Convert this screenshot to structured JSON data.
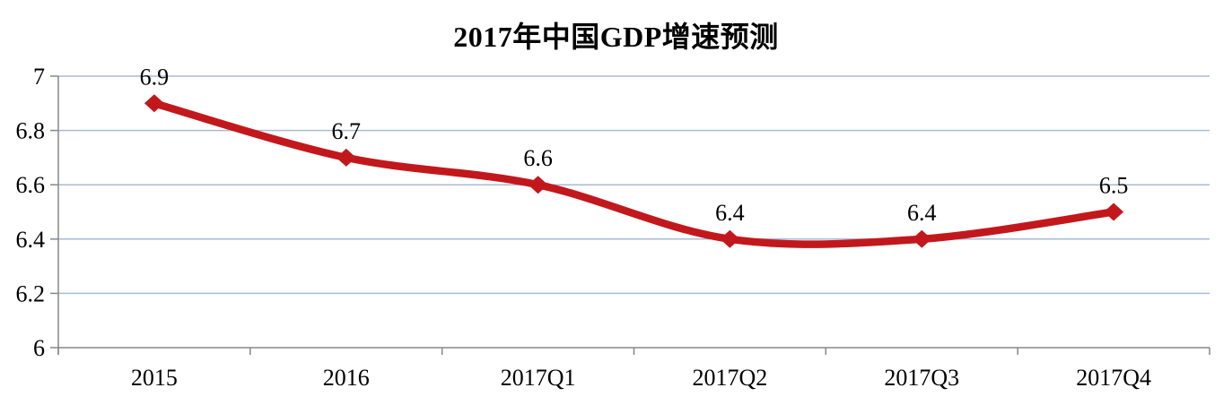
{
  "chart_data": {
    "type": "line",
    "title": "2017年中国GDP增速预测",
    "categories": [
      "2015",
      "2016",
      "2017Q1",
      "2017Q2",
      "2017Q3",
      "2017Q4"
    ],
    "values": [
      6.9,
      6.7,
      6.6,
      6.4,
      6.4,
      6.5
    ],
    "data_labels": [
      "6.9",
      "6.7",
      "6.6",
      "6.4",
      "6.4",
      "6.5"
    ],
    "xlabel": "",
    "ylabel": "",
    "ylim": [
      6,
      7
    ],
    "yticks": [
      7,
      6.8,
      6.6,
      6.4,
      6.2,
      6
    ],
    "ytick_labels": [
      "7",
      "6.8",
      "6.6",
      "6.4",
      "6.2",
      "6"
    ],
    "grid": true,
    "legend": "none",
    "line_smooth": true,
    "marker": "diamond",
    "colors": {
      "line": "#C2181C",
      "marker": "#C2181C",
      "gridline": "#A9BAD6",
      "axis": "#878787",
      "text": "#000000",
      "background": "#FFFFFF"
    }
  }
}
